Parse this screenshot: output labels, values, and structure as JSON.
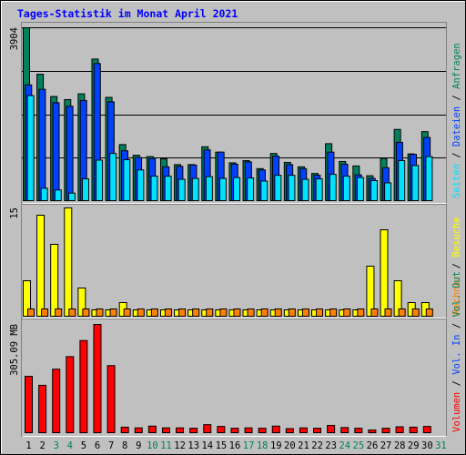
{
  "chart_data": {
    "type": "bar",
    "title": "Tages-Statistik im Monat April 2021",
    "categories": [
      "1",
      "2",
      "3",
      "4",
      "5",
      "6",
      "7",
      "8",
      "9",
      "10",
      "11",
      "12",
      "13",
      "14",
      "15",
      "16",
      "17",
      "18",
      "19",
      "20",
      "21",
      "22",
      "23",
      "24",
      "25",
      "26",
      "27",
      "28",
      "29",
      "30",
      "31"
    ],
    "weekend_days": [
      "3",
      "4",
      "10",
      "11",
      "17",
      "18",
      "24",
      "25",
      "31"
    ],
    "weekend_color": "#00805c",
    "colors": {
      "anfragen": "#00805c",
      "dateien": "#0040ff",
      "seiten": "#00e0ff",
      "besuche": "#ffff00",
      "rechner": "#ff8000",
      "volumen": "#ff0000",
      "title": "#0000ff",
      "background": "#c0c0c0",
      "separator_label": "#000000"
    },
    "panels": [
      {
        "max_label": "3904",
        "ylim": [
          0,
          3904
        ],
        "legend": [
          "Anfragen",
          "Dateien",
          "Seiten"
        ],
        "separator": "/",
        "series": [
          {
            "name": "Anfragen",
            "values": [
              3904,
              2860,
              2360,
              2290,
              2420,
              3200,
              2340,
              1280,
              1040,
              1010,
              960,
              830,
              830,
              1230,
              1110,
              870,
              920,
              740,
              1080,
              880,
              780,
              630,
              1300,
              900,
              800,
              580,
              970,
              1620,
              1070,
              1570,
              0
            ]
          },
          {
            "name": "Dateien",
            "values": [
              2620,
              2520,
              2220,
              2140,
              2270,
              3100,
              2240,
              1140,
              990,
              970,
              780,
              790,
              820,
              1160,
              1110,
              840,
              890,
              710,
              1020,
              830,
              740,
              590,
              1110,
              840,
              600,
              520,
              760,
              1330,
              1060,
              1440,
              0
            ]
          },
          {
            "name": "Seiten",
            "values": [
              2380,
              300,
              260,
              190,
              510,
              930,
              1080,
              940,
              710,
              570,
              570,
              500,
              520,
              560,
              520,
              540,
              530,
              460,
              590,
              590,
              500,
              510,
              610,
              570,
              540,
              470,
              420,
              920,
              810,
              1010,
              0
            ]
          }
        ]
      },
      {
        "max_label": "15",
        "ylim": [
          0,
          15
        ],
        "legend": [
          "Besuche",
          "Rechner"
        ],
        "series": [
          {
            "name": "Besuche",
            "values": [
              5,
              14,
              10,
              15,
              4,
              1,
              1,
              2,
              1,
              1,
              1,
              1,
              1,
              1,
              1,
              1,
              1,
              1,
              1,
              1,
              1,
              1,
              1,
              1,
              1,
              7,
              12,
              5,
              2,
              2,
              0
            ]
          },
          {
            "name": "Rechner",
            "values": [
              1,
              1,
              1,
              1,
              1,
              1,
              1,
              1,
              1,
              1,
              1,
              1,
              1,
              1,
              1,
              1,
              1,
              1,
              1,
              1,
              1,
              1,
              1,
              1,
              1,
              1,
              1,
              1,
              1,
              1,
              0
            ]
          }
        ]
      },
      {
        "max_label": "305.09 MB",
        "ylim": [
          0,
          305.09
        ],
        "legend": [
          "Volumen",
          "Vol. In",
          "Vol. Out"
        ],
        "legend_colors": [
          "#ff0000",
          "#0040ff",
          "#00805c"
        ],
        "series": [
          {
            "name": "Volumen",
            "values": [
              160,
              135,
              180,
              215,
              260,
              305.09,
              190,
              18,
              16,
              21,
              16,
              16,
              15,
              25,
              20,
              15,
              16,
              15,
              21,
              14,
              16,
              15,
              23,
              17,
              15,
              10,
              15,
              19,
              18,
              20,
              0
            ]
          }
        ]
      }
    ]
  }
}
